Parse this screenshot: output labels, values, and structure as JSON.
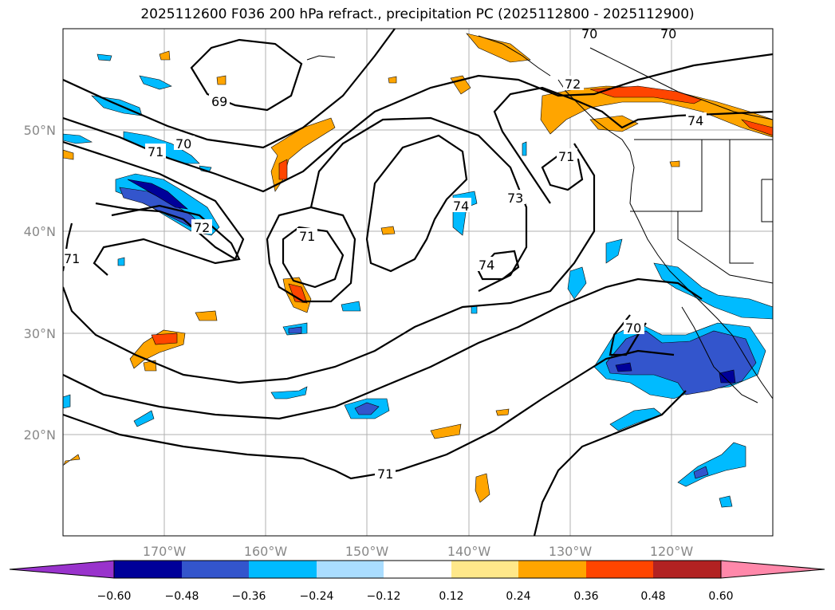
{
  "title": "2025112600 F036 200 hPa refract., precipitation PC (2025112800 - 2025112900)",
  "x_ticks": [
    "170°W",
    "160°W",
    "150°W",
    "140°W",
    "130°W",
    "120°W"
  ],
  "y_ticks": [
    "50°N",
    "40°N",
    "30°N",
    "20°N"
  ],
  "contour_labels": [
    "69",
    "70",
    "71",
    "72",
    "73",
    "74"
  ],
  "colorbar": {
    "tick_labels": [
      "−0.60",
      "−0.48",
      "−0.36",
      "−0.24",
      "−0.12",
      "0.12",
      "0.24",
      "0.36",
      "0.48",
      "0.60"
    ],
    "colors": [
      "#9933cc",
      "#000099",
      "#3355cc",
      "#00bbff",
      "#aaddff",
      "#ffffff",
      "#ffe88a",
      "#ffa500",
      "#ff4500",
      "#b22222",
      "#ff88aa"
    ]
  }
}
